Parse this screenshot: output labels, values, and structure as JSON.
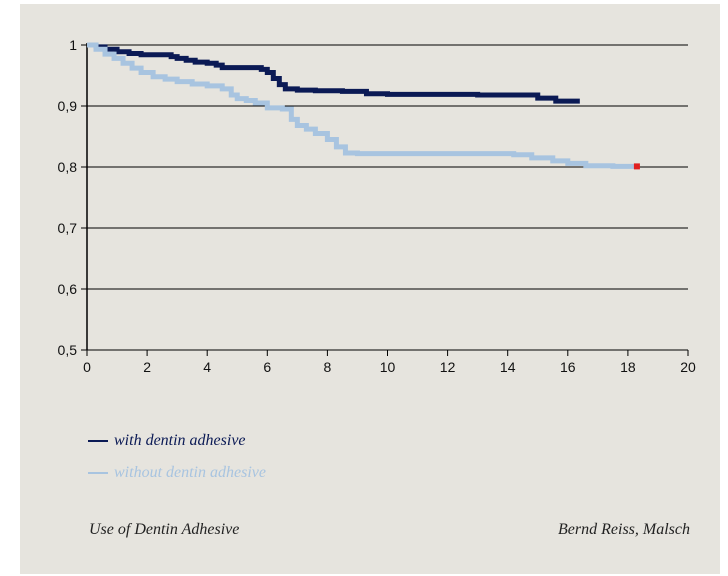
{
  "chart_data": {
    "type": "line",
    "xlim": [
      0,
      20
    ],
    "ylim": [
      0.5,
      1.0
    ],
    "x_ticks": [
      "0",
      "2",
      "4",
      "6",
      "8",
      "10",
      "12",
      "14",
      "16",
      "18",
      "20"
    ],
    "y_ticks": [
      "0,5",
      "0,6",
      "0,7",
      "0,8",
      "0,9",
      "1"
    ],
    "grid": "horizontal",
    "legend_position": "bottom-left",
    "series": [
      {
        "name": "with dentin adhesive",
        "color": "#0b1a55",
        "x": [
          0,
          0.3,
          0.6,
          1.0,
          1.4,
          1.8,
          2.5,
          2.8,
          3.0,
          3.3,
          3.6,
          4.0,
          4.3,
          4.5,
          5.5,
          5.8,
          6.0,
          6.2,
          6.4,
          6.6,
          7.0,
          7.6,
          8.5,
          9.3,
          10,
          12,
          13,
          14.2,
          15.0,
          15.6,
          16.4
        ],
        "y": [
          1.0,
          0.997,
          0.993,
          0.989,
          0.986,
          0.984,
          0.984,
          0.981,
          0.978,
          0.975,
          0.972,
          0.97,
          0.967,
          0.963,
          0.963,
          0.96,
          0.955,
          0.945,
          0.935,
          0.928,
          0.926,
          0.925,
          0.924,
          0.92,
          0.919,
          0.919,
          0.918,
          0.918,
          0.913,
          0.908,
          0.908
        ]
      },
      {
        "name": "without dentin adhesive",
        "color": "#a8c4e0",
        "x": [
          0,
          0.3,
          0.6,
          0.9,
          1.2,
          1.5,
          1.8,
          2.2,
          2.6,
          3.0,
          3.5,
          4.0,
          4.5,
          4.8,
          5.0,
          5.3,
          5.6,
          6.0,
          6.5,
          6.8,
          7.0,
          7.3,
          7.6,
          8.0,
          8.3,
          8.6,
          9.0,
          10,
          12,
          13.5,
          14.2,
          14.8,
          15.5,
          16.0,
          16.6,
          17.5,
          18.3
        ],
        "y": [
          1.0,
          0.993,
          0.985,
          0.978,
          0.97,
          0.962,
          0.955,
          0.948,
          0.944,
          0.94,
          0.936,
          0.933,
          0.928,
          0.918,
          0.912,
          0.909,
          0.905,
          0.897,
          0.895,
          0.878,
          0.868,
          0.862,
          0.855,
          0.845,
          0.833,
          0.823,
          0.822,
          0.822,
          0.822,
          0.822,
          0.82,
          0.815,
          0.81,
          0.806,
          0.802,
          0.801,
          0.801
        ]
      }
    ],
    "end_marker": {
      "x": 18.3,
      "y": 0.801,
      "color": "#e02020"
    }
  },
  "legend": {
    "items": [
      {
        "label": "with dentin adhesive",
        "color": "#0b1a55"
      },
      {
        "label": "without dentin adhesive",
        "color": "#a8c4e0"
      }
    ]
  },
  "footer": {
    "left": "Use of Dentin Adhesive",
    "right": "Bernd Reiss, Malsch"
  }
}
